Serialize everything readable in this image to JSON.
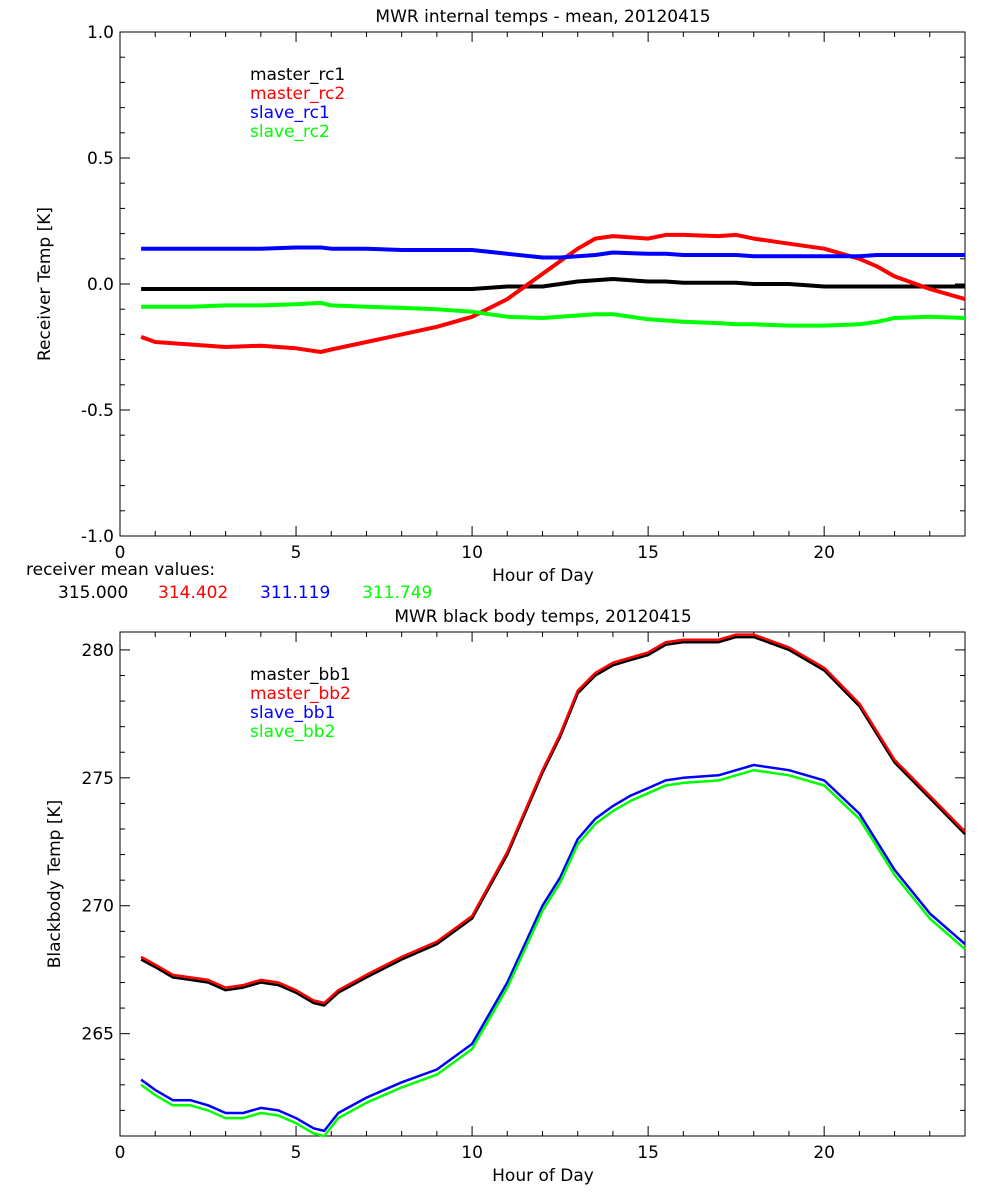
{
  "chart_data": [
    {
      "type": "line",
      "title": "MWR internal temps - mean, 20120415",
      "xlabel": "Hour of Day",
      "ylabel": "Receiver Temp [K]",
      "xlim": [
        0,
        24
      ],
      "ylim": [
        -1.0,
        1.0
      ],
      "xticks": [
        "0",
        "5",
        "10",
        "15",
        "20"
      ],
      "yticks": [
        "-1.0",
        "-0.5",
        "0.0",
        "0.5",
        "1.0"
      ],
      "grid": false,
      "legend_position": "top-left",
      "x": [
        0.6,
        1,
        2,
        3,
        4,
        5,
        5.7,
        6,
        7,
        8,
        9,
        10,
        11,
        12,
        12.5,
        13,
        13.5,
        14,
        15,
        15.5,
        16,
        17,
        17.5,
        18,
        19,
        20,
        21,
        21.5,
        22,
        23,
        24
      ],
      "series": [
        {
          "name": "master_rc1",
          "color": "#000000",
          "values": [
            -0.02,
            -0.02,
            -0.02,
            -0.02,
            -0.02,
            -0.02,
            -0.02,
            -0.02,
            -0.02,
            -0.02,
            -0.02,
            -0.02,
            -0.01,
            -0.01,
            0.0,
            0.01,
            0.015,
            0.02,
            0.01,
            0.01,
            0.005,
            0.005,
            0.005,
            0.0,
            0.0,
            -0.01,
            -0.01,
            -0.01,
            -0.01,
            -0.01,
            -0.01
          ]
        },
        {
          "name": "master_rc2",
          "color": "#ff0000",
          "values": [
            -0.21,
            -0.23,
            -0.24,
            -0.25,
            -0.245,
            -0.255,
            -0.27,
            -0.26,
            -0.23,
            -0.2,
            -0.17,
            -0.13,
            -0.06,
            0.04,
            0.09,
            0.14,
            0.18,
            0.19,
            0.18,
            0.195,
            0.195,
            0.19,
            0.195,
            0.18,
            0.16,
            0.14,
            0.1,
            0.07,
            0.03,
            -0.02,
            -0.06
          ]
        },
        {
          "name": "slave_rc1",
          "color": "#0000ff",
          "values": [
            0.14,
            0.14,
            0.14,
            0.14,
            0.14,
            0.145,
            0.145,
            0.14,
            0.14,
            0.135,
            0.135,
            0.135,
            0.12,
            0.105,
            0.105,
            0.11,
            0.115,
            0.125,
            0.12,
            0.12,
            0.115,
            0.115,
            0.115,
            0.11,
            0.11,
            0.11,
            0.11,
            0.115,
            0.115,
            0.115,
            0.115
          ]
        },
        {
          "name": "slave_rc2",
          "color": "#00ff00",
          "values": [
            -0.09,
            -0.09,
            -0.09,
            -0.085,
            -0.085,
            -0.08,
            -0.075,
            -0.085,
            -0.09,
            -0.095,
            -0.1,
            -0.11,
            -0.13,
            -0.135,
            -0.13,
            -0.125,
            -0.12,
            -0.12,
            -0.14,
            -0.145,
            -0.15,
            -0.155,
            -0.16,
            -0.16,
            -0.165,
            -0.165,
            -0.16,
            -0.15,
            -0.135,
            -0.13,
            -0.135
          ]
        }
      ],
      "footer": {
        "caption": "receiver mean values:",
        "values": [
          {
            "text": "315.000",
            "color": "#000000"
          },
          {
            "text": "314.402",
            "color": "#ff0000"
          },
          {
            "text": "311.119",
            "color": "#0000ff"
          },
          {
            "text": "311.749",
            "color": "#00ff00"
          }
        ]
      }
    },
    {
      "type": "line",
      "title": "MWR black body temps, 20120415",
      "xlabel": "Hour of Day",
      "ylabel": "Blackbody Temp [K]",
      "xlim": [
        0,
        24
      ],
      "ylim": [
        261,
        280.7
      ],
      "xticks": [
        "0",
        "5",
        "10",
        "15",
        "20"
      ],
      "yticks": [
        "265",
        "270",
        "275",
        "280"
      ],
      "grid": false,
      "legend_position": "top-left",
      "x": [
        0.6,
        1,
        1.5,
        2,
        2.5,
        3,
        3.5,
        4,
        4.5,
        5,
        5.5,
        5.8,
        6.2,
        7,
        8,
        9,
        10,
        11,
        12,
        12.5,
        13,
        13.5,
        14,
        14.5,
        15,
        15.5,
        16,
        17,
        17.5,
        18,
        19,
        20,
        21,
        22,
        23,
        24
      ],
      "series": [
        {
          "name": "master_bb1",
          "color": "#000000",
          "values": [
            267.9,
            267.6,
            267.2,
            267.1,
            267.0,
            266.7,
            266.8,
            267.0,
            266.9,
            266.6,
            266.2,
            266.1,
            266.6,
            267.2,
            267.9,
            268.5,
            269.5,
            272.0,
            275.2,
            276.6,
            278.3,
            279.0,
            279.4,
            279.6,
            279.8,
            280.2,
            280.3,
            280.3,
            280.5,
            280.5,
            280.0,
            279.2,
            277.8,
            275.6,
            274.2,
            272.8
          ]
        },
        {
          "name": "master_bb2",
          "color": "#ff0000",
          "values": [
            268.0,
            267.7,
            267.3,
            267.2,
            267.1,
            266.8,
            266.9,
            267.1,
            267.0,
            266.7,
            266.3,
            266.2,
            266.7,
            267.3,
            268.0,
            268.6,
            269.6,
            272.1,
            275.3,
            276.7,
            278.4,
            279.1,
            279.5,
            279.7,
            279.9,
            280.3,
            280.4,
            280.4,
            280.6,
            280.6,
            280.1,
            279.3,
            277.9,
            275.7,
            274.3,
            272.9
          ]
        },
        {
          "name": "slave_bb1",
          "color": "#0000ff",
          "values": [
            263.2,
            262.8,
            262.4,
            262.4,
            262.2,
            261.9,
            261.9,
            262.1,
            262.0,
            261.7,
            261.3,
            261.2,
            261.9,
            262.5,
            263.1,
            263.6,
            264.6,
            267.0,
            270.0,
            271.1,
            272.6,
            273.4,
            273.9,
            274.3,
            274.6,
            274.9,
            275.0,
            275.1,
            275.3,
            275.5,
            275.3,
            274.9,
            273.6,
            271.4,
            269.7,
            268.5
          ]
        },
        {
          "name": "slave_bb2",
          "color": "#00ff00",
          "values": [
            263.0,
            262.6,
            262.2,
            262.2,
            262.0,
            261.7,
            261.7,
            261.9,
            261.8,
            261.5,
            261.1,
            261.0,
            261.7,
            262.3,
            262.9,
            263.4,
            264.4,
            266.8,
            269.8,
            270.9,
            272.4,
            273.2,
            273.7,
            274.1,
            274.4,
            274.7,
            274.8,
            274.9,
            275.1,
            275.3,
            275.1,
            274.7,
            273.4,
            271.2,
            269.5,
            268.3
          ]
        }
      ]
    }
  ]
}
